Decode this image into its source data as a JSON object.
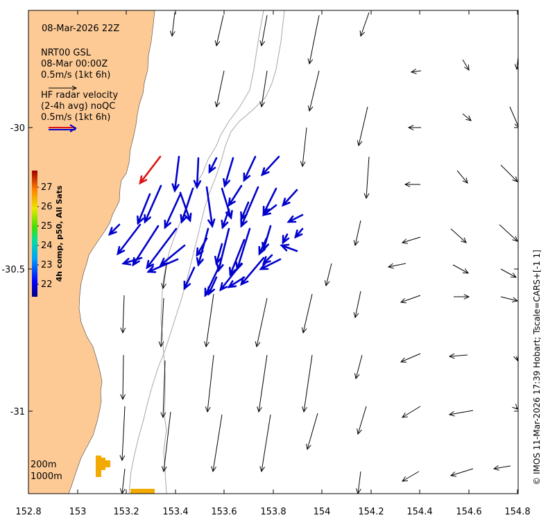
{
  "title_time": "08-Mar-2026 22Z",
  "model": {
    "name": "NRT00 GSL",
    "time": "08-Mar 00:00Z",
    "scale": "0.5m/s (1kt 6h)"
  },
  "radar": {
    "line1": "HF radar velocity",
    "line2": "(2-4h avg) noQC",
    "scale": "0.5m/s (1kt 6h)"
  },
  "colorbar": {
    "label": "4h comp, p50, All Sats",
    "ticks": [
      "22",
      "23",
      "24",
      "25",
      "26",
      "27"
    ]
  },
  "isobaths": [
    "200m",
    "1000m"
  ],
  "x_axis_ticks": [
    "152.8",
    "153",
    "153.2",
    "153.4",
    "153.6",
    "153.8",
    "154",
    "154.2",
    "154.4",
    "154.6",
    "154.8"
  ],
  "y_axis_ticks": [
    "-30",
    "-30.5",
    "-31"
  ],
  "credit": "© IMOS 11-Mar-2026 17:39 Hobart; Tscale=CARS+[-1 1]",
  "colors": {
    "land": "#fdca96",
    "model_arrow": "#000000",
    "radar_arrow": "#0000cc",
    "radar_arrow_highlight": "#dd1111",
    "isobath": "#a6a6a6",
    "sst_patch": "#f2aa00"
  }
}
